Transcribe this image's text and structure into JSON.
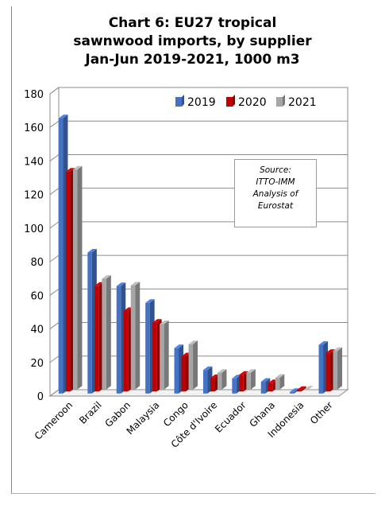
{
  "chart_data": {
    "type": "bar",
    "title_lines": [
      "Chart 6: EU27 tropical",
      "sawnwood imports, by supplier",
      "Jan-Jun 2019-2021, 1000 m3"
    ],
    "categories": [
      "Cameroon",
      "Brazil",
      "Gabon",
      "Malaysia",
      "Congo",
      "Côte d'Ivoire",
      "Ecuador",
      "Ghana",
      "Indonesia",
      "Other"
    ],
    "series": [
      {
        "name": "2019",
        "color": "#4472C4",
        "values": [
          164,
          84,
          64,
          54,
          27,
          14,
          9,
          7,
          1,
          29
        ]
      },
      {
        "name": "2020",
        "color": "#C00000",
        "values": [
          131,
          63,
          48,
          41,
          21,
          8,
          10,
          5,
          1,
          23
        ]
      },
      {
        "name": "2021",
        "color": "#A6A6A6",
        "values": [
          131,
          66,
          62,
          39,
          27,
          10,
          10,
          7,
          0,
          23
        ]
      }
    ],
    "yticks": [
      "0",
      "20",
      "40",
      "60",
      "80",
      "100",
      "120",
      "140",
      "160",
      "180"
    ],
    "ylim": [
      0,
      180
    ],
    "grid": true,
    "legend_position": "top-right",
    "annotation_lines": [
      "Source:",
      "ITTO-IMM",
      "Analysis of",
      "Eurostat"
    ],
    "style": "3d-clustered-column"
  }
}
